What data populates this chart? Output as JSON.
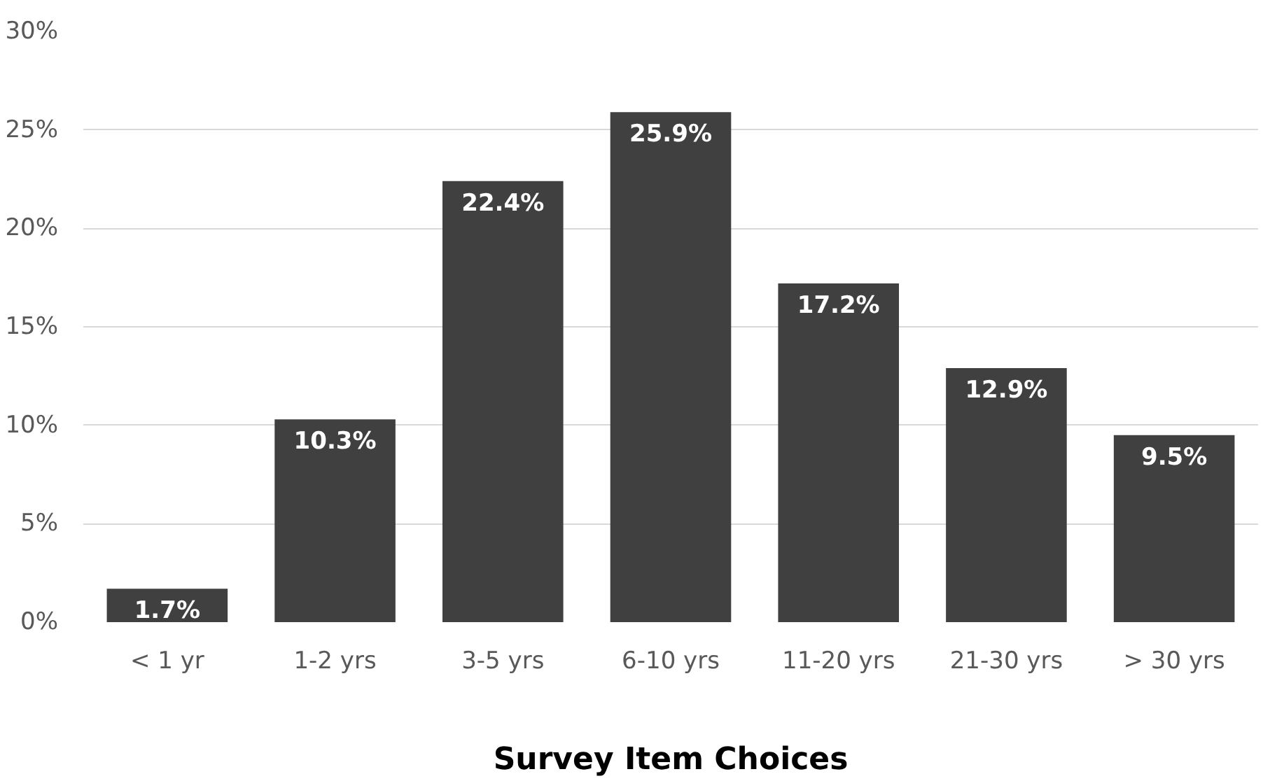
{
  "chart_data": {
    "type": "bar",
    "xlabel": "Survey Item Choices",
    "categories": [
      "< 1 yr",
      "1-2 yrs",
      "3-5 yrs",
      "6-10 yrs",
      "11-20 yrs",
      "21-30 yrs",
      "> 30 yrs"
    ],
    "values": [
      1.7,
      10.3,
      22.4,
      25.9,
      17.2,
      12.9,
      9.5
    ],
    "value_labels": [
      "1.7%",
      "10.3%",
      "22.4%",
      "25.9%",
      "17.2%",
      "12.9%",
      "9.5%"
    ],
    "color": "#404040",
    "ylim": [
      0,
      30
    ],
    "yticks": [
      {
        "value": 0,
        "label": "0%"
      },
      {
        "value": 5,
        "label": "5%"
      },
      {
        "value": 10,
        "label": "10%"
      },
      {
        "value": 15,
        "label": "15%"
      },
      {
        "value": 20,
        "label": "20%"
      },
      {
        "value": 25,
        "label": "25%"
      },
      {
        "value": 30,
        "label": "30%"
      }
    ],
    "grid": "y"
  }
}
